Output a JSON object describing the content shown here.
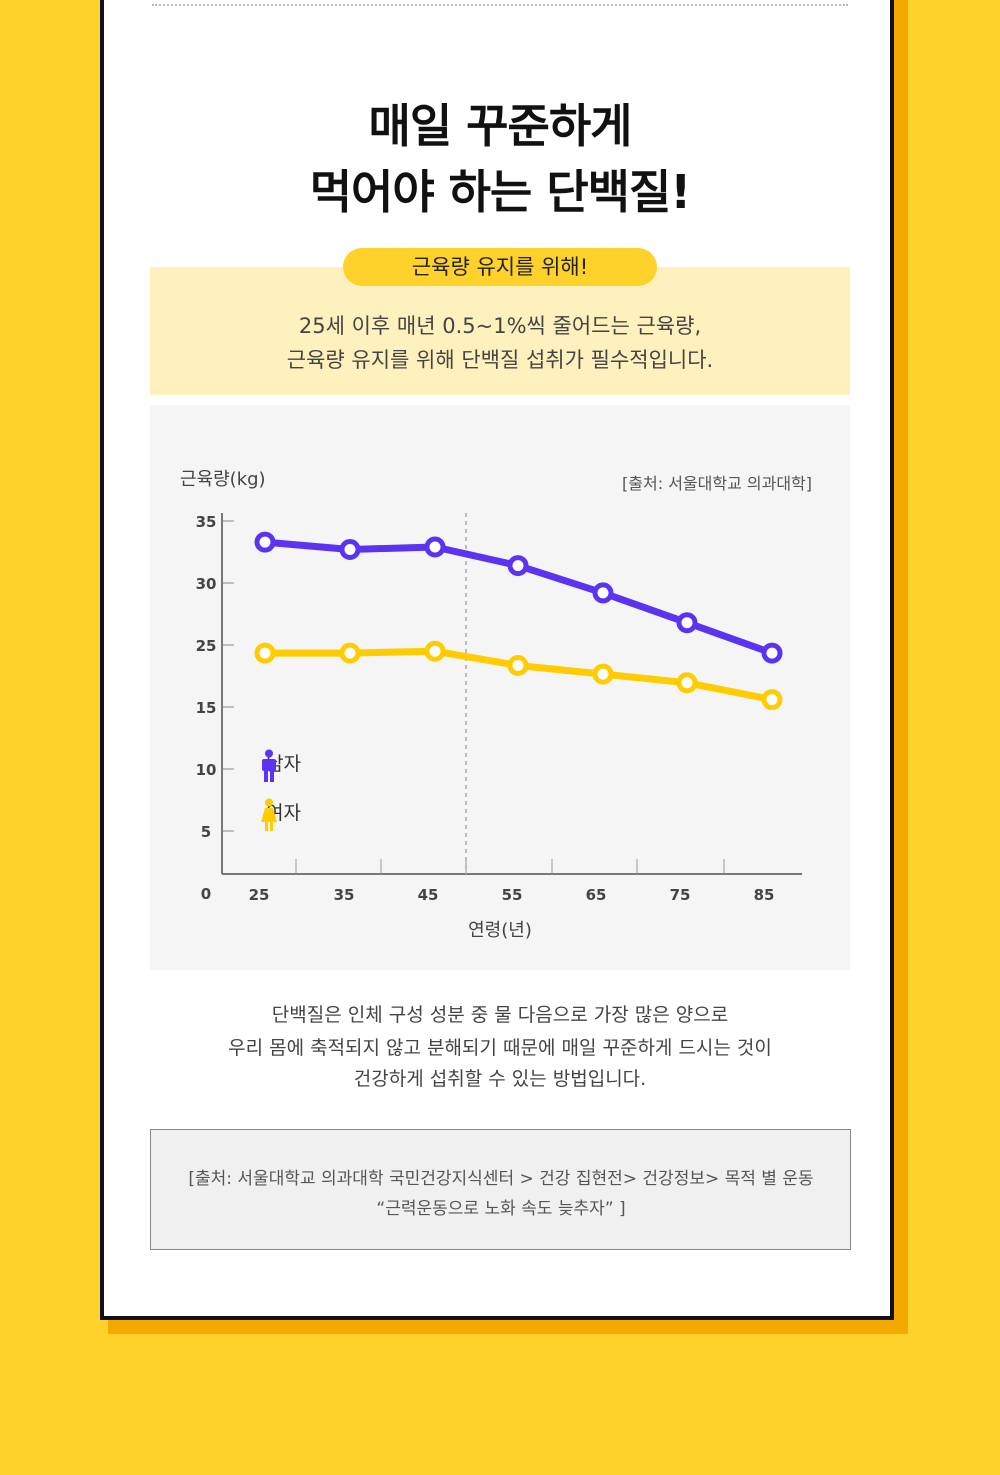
{
  "title": {
    "line1": "매일 꾸준하게",
    "line2": "먹어야 하는 단백질!"
  },
  "pill_label": "근육량 유지를 위해!",
  "intro": {
    "line1": "25세 이후 매년 0.5~1%씩 줄어드는 근육량,",
    "line2": "근육량 유지를 위해 단백질 섭취가 필수적입니다."
  },
  "chart_data": {
    "type": "line",
    "ylabel": "근육량(kg)",
    "xlabel": "연령(년)",
    "source": "[출처: 서울대학교 의과대학]",
    "x": [
      25,
      35,
      45,
      55,
      65,
      75,
      85
    ],
    "xticks": [
      "25",
      "35",
      "45",
      "55",
      "65",
      "75",
      "85"
    ],
    "yticks": [
      "0",
      "5",
      "10",
      "15",
      "25",
      "30",
      "35"
    ],
    "series": [
      {
        "name": "남자",
        "color": "#5B33F0",
        "values": [
          33.3,
          32.7,
          32.9,
          31.4,
          29.2,
          26.8,
          23.7
        ]
      },
      {
        "name": "여자",
        "color": "#FFCC00",
        "values": [
          23.7,
          23.7,
          24.0,
          21.7,
          20.3,
          18.9,
          16.2
        ]
      }
    ],
    "grid": false,
    "legend_position": "bottom-left"
  },
  "body": {
    "line1": "단백질은 인체 구성 성분 중 물 다음으로 가장 많은 양으로",
    "line2": "우리 몸에 축적되지 않고 분해되기 때문에 매일 꾸준하게 드시는 것이",
    "line3": "건강하게 섭취할 수 있는 방법입니다."
  },
  "source_box": {
    "line1": "[출처: 서울대학교 의과대학 국민건강지식센터 > 건강 집현전> 건강정보> 목적 별 운동",
    "line2": "“근력운동으로 노화 속도 늦추자” ]"
  },
  "icons": {
    "male": "male-person-icon",
    "female": "female-person-icon"
  },
  "colors": {
    "background": "#FFD12B",
    "intro_bg": "#FFF1BD",
    "chart_bg": "#F5F5F5"
  }
}
